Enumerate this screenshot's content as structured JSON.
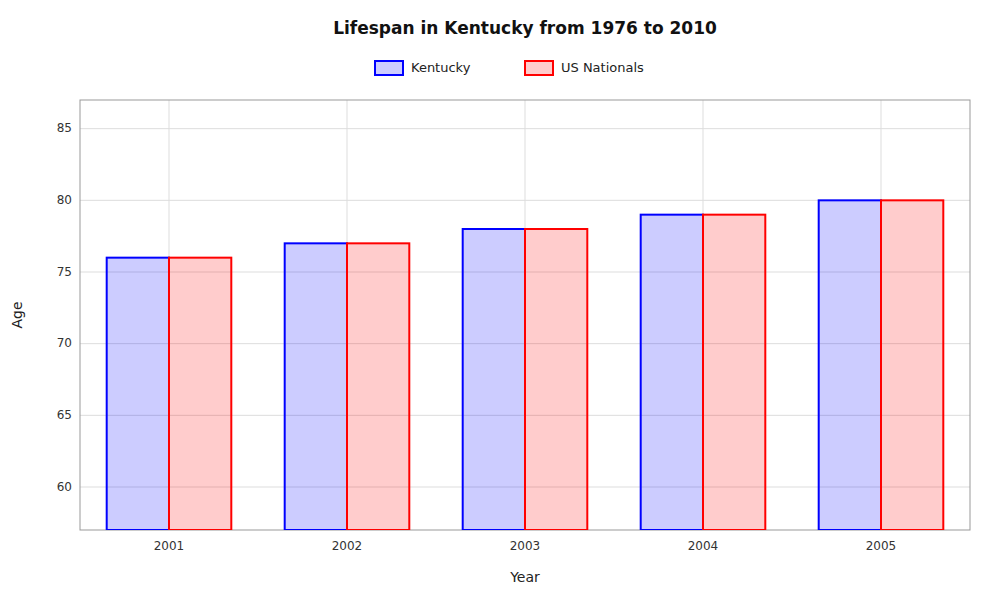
{
  "chart_data": {
    "type": "bar",
    "title": "Lifespan in Kentucky from 1976 to 2010",
    "x_label": "Year",
    "y_label": "Age",
    "categories": [
      "2001",
      "2002",
      "2003",
      "2004",
      "2005"
    ],
    "series": [
      {
        "name": "Kentucky",
        "color": "#0000ff",
        "values": [
          76,
          77,
          78,
          79,
          80
        ]
      },
      {
        "name": "US Nationals",
        "color": "#ff0000",
        "values": [
          76,
          77,
          78,
          79,
          80
        ]
      }
    ],
    "ylim": [
      57,
      87
    ],
    "yticks": [
      60,
      65,
      70,
      75,
      80,
      85
    ],
    "grid": true,
    "legend": "upper center"
  }
}
